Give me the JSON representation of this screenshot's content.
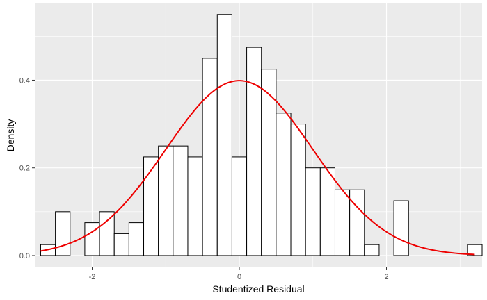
{
  "chart_data": {
    "type": "bar",
    "xlabel": "Studentized Residual",
    "ylabel": "Density",
    "xlim": [
      -2.78,
      3.3
    ],
    "ylim": [
      -0.027,
      0.575
    ],
    "x_ticks": [
      -2,
      0,
      2
    ],
    "x_tick_labels": [
      "-2",
      "0",
      "2"
    ],
    "y_ticks": [
      0.0,
      0.2,
      0.4
    ],
    "y_tick_labels": [
      "0.0",
      "0.2",
      "0.4"
    ],
    "bin_width": 0.2,
    "bins": [
      {
        "x0": -2.7,
        "x1": -2.5,
        "density": 0.025
      },
      {
        "x0": -2.5,
        "x1": -2.3,
        "density": 0.1
      },
      {
        "x0": -2.3,
        "x1": -2.1,
        "density": 0.0
      },
      {
        "x0": -2.1,
        "x1": -1.9,
        "density": 0.075
      },
      {
        "x0": -1.9,
        "x1": -1.7,
        "density": 0.1
      },
      {
        "x0": -1.7,
        "x1": -1.5,
        "density": 0.05
      },
      {
        "x0": -1.5,
        "x1": -1.3,
        "density": 0.075
      },
      {
        "x0": -1.3,
        "x1": -1.1,
        "density": 0.225
      },
      {
        "x0": -1.1,
        "x1": -0.9,
        "density": 0.25
      },
      {
        "x0": -0.9,
        "x1": -0.7,
        "density": 0.25
      },
      {
        "x0": -0.7,
        "x1": -0.5,
        "density": 0.225
      },
      {
        "x0": -0.5,
        "x1": -0.3,
        "density": 0.45
      },
      {
        "x0": -0.3,
        "x1": -0.1,
        "density": 0.55
      },
      {
        "x0": -0.1,
        "x1": 0.1,
        "density": 0.225
      },
      {
        "x0": 0.1,
        "x1": 0.3,
        "density": 0.475
      },
      {
        "x0": 0.3,
        "x1": 0.5,
        "density": 0.425
      },
      {
        "x0": 0.5,
        "x1": 0.7,
        "density": 0.325
      },
      {
        "x0": 0.7,
        "x1": 0.9,
        "density": 0.3
      },
      {
        "x0": 0.9,
        "x1": 1.1,
        "density": 0.2
      },
      {
        "x0": 1.1,
        "x1": 1.3,
        "density": 0.2
      },
      {
        "x0": 1.3,
        "x1": 1.5,
        "density": 0.15
      },
      {
        "x0": 1.5,
        "x1": 1.7,
        "density": 0.15
      },
      {
        "x0": 1.7,
        "x1": 1.9,
        "density": 0.025
      },
      {
        "x0": 1.9,
        "x1": 2.1,
        "density": 0.0
      },
      {
        "x0": 2.1,
        "x1": 2.3,
        "density": 0.125
      },
      {
        "x0": 2.3,
        "x1": 2.5,
        "density": 0.0
      },
      {
        "x0": 2.5,
        "x1": 2.7,
        "density": 0.0
      },
      {
        "x0": 2.7,
        "x1": 2.9,
        "density": 0.0
      },
      {
        "x0": 2.9,
        "x1": 3.1,
        "density": 0.0
      },
      {
        "x0": 3.1,
        "x1": 3.3,
        "density": 0.025
      }
    ],
    "curve": {
      "type": "normal-density",
      "mean": 0,
      "sd": 1,
      "x_range": [
        -2.7,
        3.2
      ]
    },
    "colors": {
      "panel_background": "#ebebeb",
      "grid_major": "#ffffff",
      "bar_fill": "#ffffff",
      "bar_outline": "#000000",
      "curve": "#ee0000",
      "tick_label": "#4d4d4d",
      "axis_title": "#000000"
    },
    "grid": true,
    "legend": "none"
  }
}
